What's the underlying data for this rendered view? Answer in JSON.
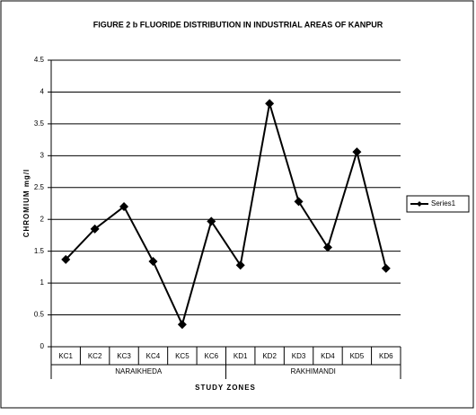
{
  "chart_data": {
    "type": "line",
    "title": "FIGURE 2 b FLUORIDE DISTRIBUTION IN INDUSTRIAL AREAS OF KANPUR",
    "y_label": "CHROMIUM mg/l",
    "x_label": "STUDY ZONES",
    "groups": [
      {
        "name": "NARAIKHEDA",
        "categories": [
          "KC1",
          "KC2",
          "KC3",
          "KC4",
          "KC5",
          "KC6"
        ]
      },
      {
        "name": "RAKHIMANDI",
        "categories": [
          "KD1",
          "KD2",
          "KD3",
          "KD4",
          "KD5",
          "KD6"
        ]
      }
    ],
    "series": [
      {
        "name": "Series1",
        "color": "#000000",
        "values": [
          1.37,
          1.85,
          2.2,
          1.34,
          0.35,
          1.97,
          1.28,
          3.82,
          2.28,
          1.56,
          3.06,
          1.23
        ]
      }
    ],
    "ylim": [
      0,
      4.5
    ],
    "yticks": [
      0,
      0.5,
      1,
      1.5,
      2,
      2.5,
      3,
      3.5,
      4,
      4.5
    ],
    "grid": true,
    "legend": "right"
  }
}
